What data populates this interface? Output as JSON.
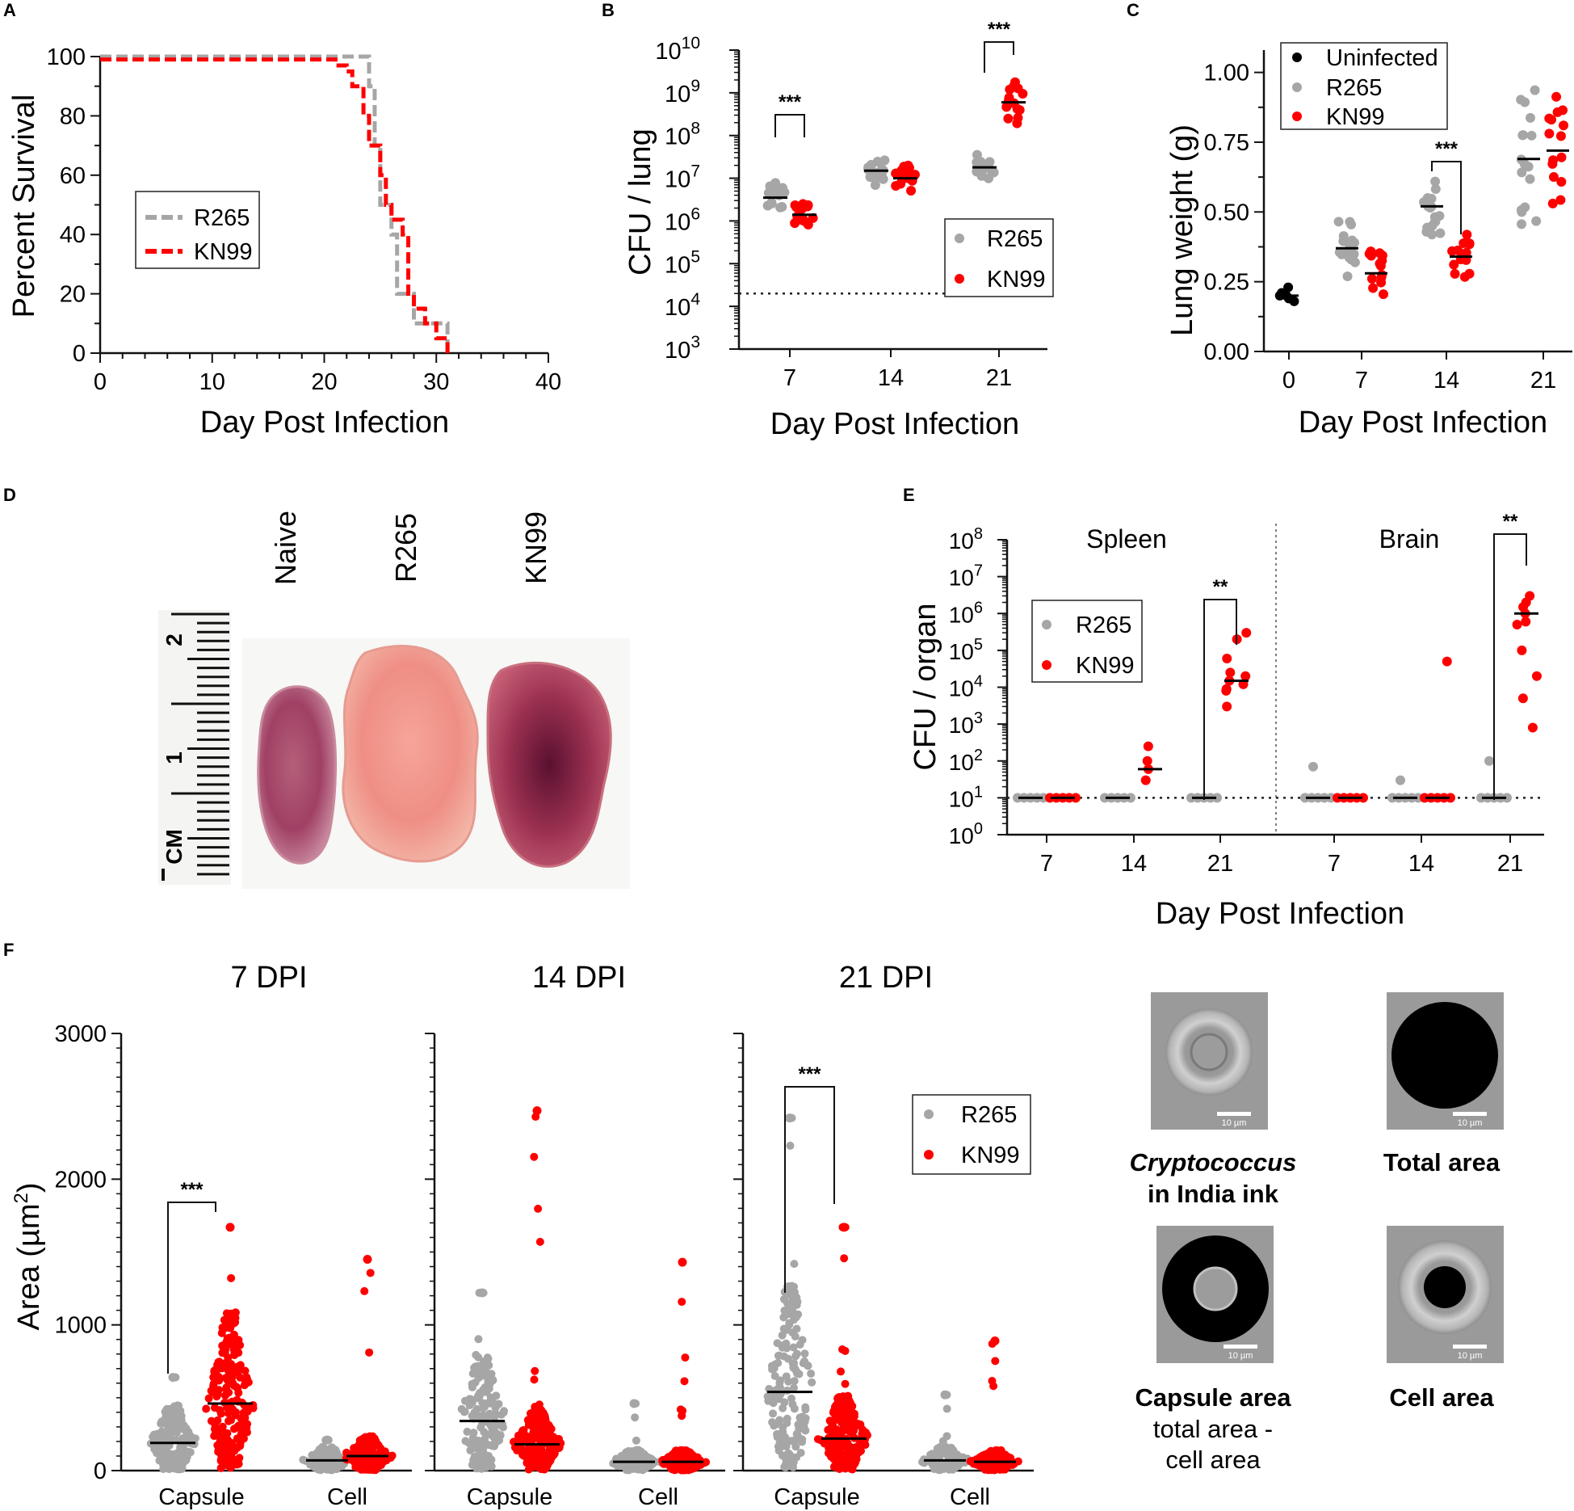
{
  "colors": {
    "r265": "#a6a6a6",
    "kn99": "#ff0000",
    "uninfected": "#000000",
    "axis": "#111111"
  },
  "panel_letters": {
    "a": "A",
    "b": "B",
    "c": "C",
    "d": "D",
    "e": "E",
    "f": "F"
  },
  "chart_data": [
    {
      "id": "A",
      "type": "line",
      "title": "",
      "xlabel": "Day Post Infection",
      "ylabel": "Percent  Survival",
      "xlim": [
        0,
        40
      ],
      "ylim": [
        0,
        100
      ],
      "xticks": [
        "0",
        "10",
        "20",
        "30",
        "40"
      ],
      "yticks": [
        "0",
        "20",
        "40",
        "60",
        "80",
        "100"
      ],
      "legend": [
        "R265",
        "KN99"
      ],
      "legend_position": "center-left",
      "series": [
        {
          "name": "R265",
          "points": [
            [
              0,
              100
            ],
            [
              23,
              100
            ],
            [
              23,
              100
            ],
            [
              24,
              90
            ],
            [
              24.5,
              70
            ],
            [
              25,
              50
            ],
            [
              26,
              40
            ],
            [
              26.5,
              20
            ],
            [
              28,
              10
            ],
            [
              31,
              10
            ],
            [
              31,
              0
            ]
          ]
        },
        {
          "name": "KN99",
          "points": [
            [
              0,
              99
            ],
            [
              20,
              99
            ],
            [
              21,
              97
            ],
            [
              22,
              95
            ],
            [
              22.5,
              90
            ],
            [
              23.5,
              80
            ],
            [
              24,
              70
            ],
            [
              25,
              60
            ],
            [
              25.5,
              50
            ],
            [
              26,
              45
            ],
            [
              27,
              40
            ],
            [
              27.5,
              20
            ],
            [
              28,
              15
            ],
            [
              29,
              10
            ],
            [
              30,
              5
            ],
            [
              31,
              0
            ]
          ]
        }
      ]
    },
    {
      "id": "B",
      "type": "scatter",
      "xlabel": "Day Post Infection",
      "ylabel": "CFU / lung",
      "yscale": "log",
      "ylim": [
        1000,
        10000000000
      ],
      "ytick_base": [
        "10",
        "10",
        "10",
        "10",
        "10",
        "10",
        "10",
        "10"
      ],
      "ytick_exp": [
        "3",
        "4",
        "5",
        "6",
        "7",
        "8",
        "9",
        "10"
      ],
      "categories": [
        "7",
        "14",
        "21"
      ],
      "detection_limit": 20000,
      "legend": [
        "R265",
        "KN99"
      ],
      "legend_position": "center-right",
      "series": [
        {
          "name": "R265",
          "medians": [
            3500000,
            15000000,
            18000000
          ]
        },
        {
          "name": "KN99",
          "medians": [
            1400000,
            10000000,
            600000000
          ]
        }
      ],
      "significance": [
        {
          "category": "7",
          "label": "***"
        },
        {
          "category": "21",
          "label": "***"
        }
      ]
    },
    {
      "id": "C",
      "type": "scatter",
      "xlabel": "Day Post Infection",
      "ylabel": "Lung weight (g)",
      "ylim": [
        0,
        1.08
      ],
      "yticks": [
        "0.00",
        "0.25",
        "0.50",
        "0.75",
        "1.00"
      ],
      "categories": [
        "0",
        "7",
        "14",
        "21"
      ],
      "legend": [
        "Uninfected",
        "R265",
        "KN99"
      ],
      "legend_position": "top-left",
      "series": [
        {
          "name": "Uninfected",
          "medians": [
            0.2,
            null,
            null,
            null
          ]
        },
        {
          "name": "R265",
          "medians": [
            null,
            0.37,
            0.52,
            0.69
          ]
        },
        {
          "name": "KN99",
          "medians": [
            null,
            0.28,
            0.34,
            0.72
          ]
        }
      ],
      "significance": [
        {
          "category": "14",
          "label": "***"
        }
      ]
    },
    {
      "id": "E",
      "type": "scatter",
      "xlabel": "Day Post Infection",
      "ylabel": "CFU / organ",
      "yscale": "log",
      "ylim": [
        1,
        100000000
      ],
      "ytick_base": [
        "10",
        "10",
        "10",
        "10",
        "10",
        "10",
        "10",
        "10",
        "10"
      ],
      "ytick_exp": [
        "0",
        "1",
        "2",
        "3",
        "4",
        "5",
        "6",
        "7",
        "8"
      ],
      "groups": [
        "Spleen",
        "Brain"
      ],
      "categories": [
        "7",
        "14",
        "21",
        "7",
        "14",
        "21"
      ],
      "detection_limit": 10,
      "legend": [
        "R265",
        "KN99"
      ],
      "legend_position": "upper-left",
      "series": [
        {
          "name": "R265",
          "medians": [
            10,
            10,
            10,
            10,
            10,
            10
          ]
        },
        {
          "name": "KN99",
          "medians": [
            10,
            60,
            15000,
            10,
            10,
            1000000
          ]
        }
      ],
      "significance": [
        {
          "category": "Spleen 21",
          "label": "**"
        },
        {
          "category": "Brain 21",
          "label": "**"
        }
      ]
    },
    {
      "id": "F",
      "type": "scatter",
      "ylabel": "Area (µm",
      "ylabel_sup": "2",
      "ylabel_end": ")",
      "ylim": [
        0,
        3000
      ],
      "yticks": [
        "0",
        "1000",
        "2000",
        "3000"
      ],
      "subplots": [
        "7 DPI",
        "14 DPI",
        "21 DPI"
      ],
      "categories": [
        "Capsule",
        "Cell"
      ],
      "legend": [
        "R265",
        "KN99"
      ],
      "legend_position": "top-right",
      "series": [
        {
          "name": "R265",
          "capsule_medians": [
            190,
            340,
            540
          ],
          "cell_medians": [
            70,
            60,
            70
          ],
          "capsule_max": [
            640,
            1220,
            2420
          ],
          "cell_max": [
            210,
            460,
            520
          ]
        },
        {
          "name": "KN99",
          "capsule_medians": [
            460,
            180,
            220
          ],
          "cell_medians": [
            100,
            60,
            60
          ],
          "capsule_max": [
            1670,
            2470,
            1670
          ],
          "cell_max": [
            1450,
            1430,
            890
          ]
        }
      ],
      "significance": [
        {
          "subplot": "7 DPI",
          "label": "***"
        },
        {
          "subplot": "21 DPI",
          "label": "***"
        }
      ]
    }
  ],
  "panel_d": {
    "labels": [
      "Naive",
      "R265",
      "KN99"
    ],
    "ruler_marks": [
      "2",
      "1"
    ],
    "ruler_unit": "CM"
  },
  "ink_images": {
    "scale_label": "10 µm",
    "titles": {
      "crypto_line1": "Cryptococcus",
      "crypto_line2": "in India ink",
      "total": "Total area",
      "capsule": "Capsule area",
      "capsule_sub1": "total area -",
      "capsule_sub2": "cell area",
      "cell": "Cell area"
    }
  }
}
